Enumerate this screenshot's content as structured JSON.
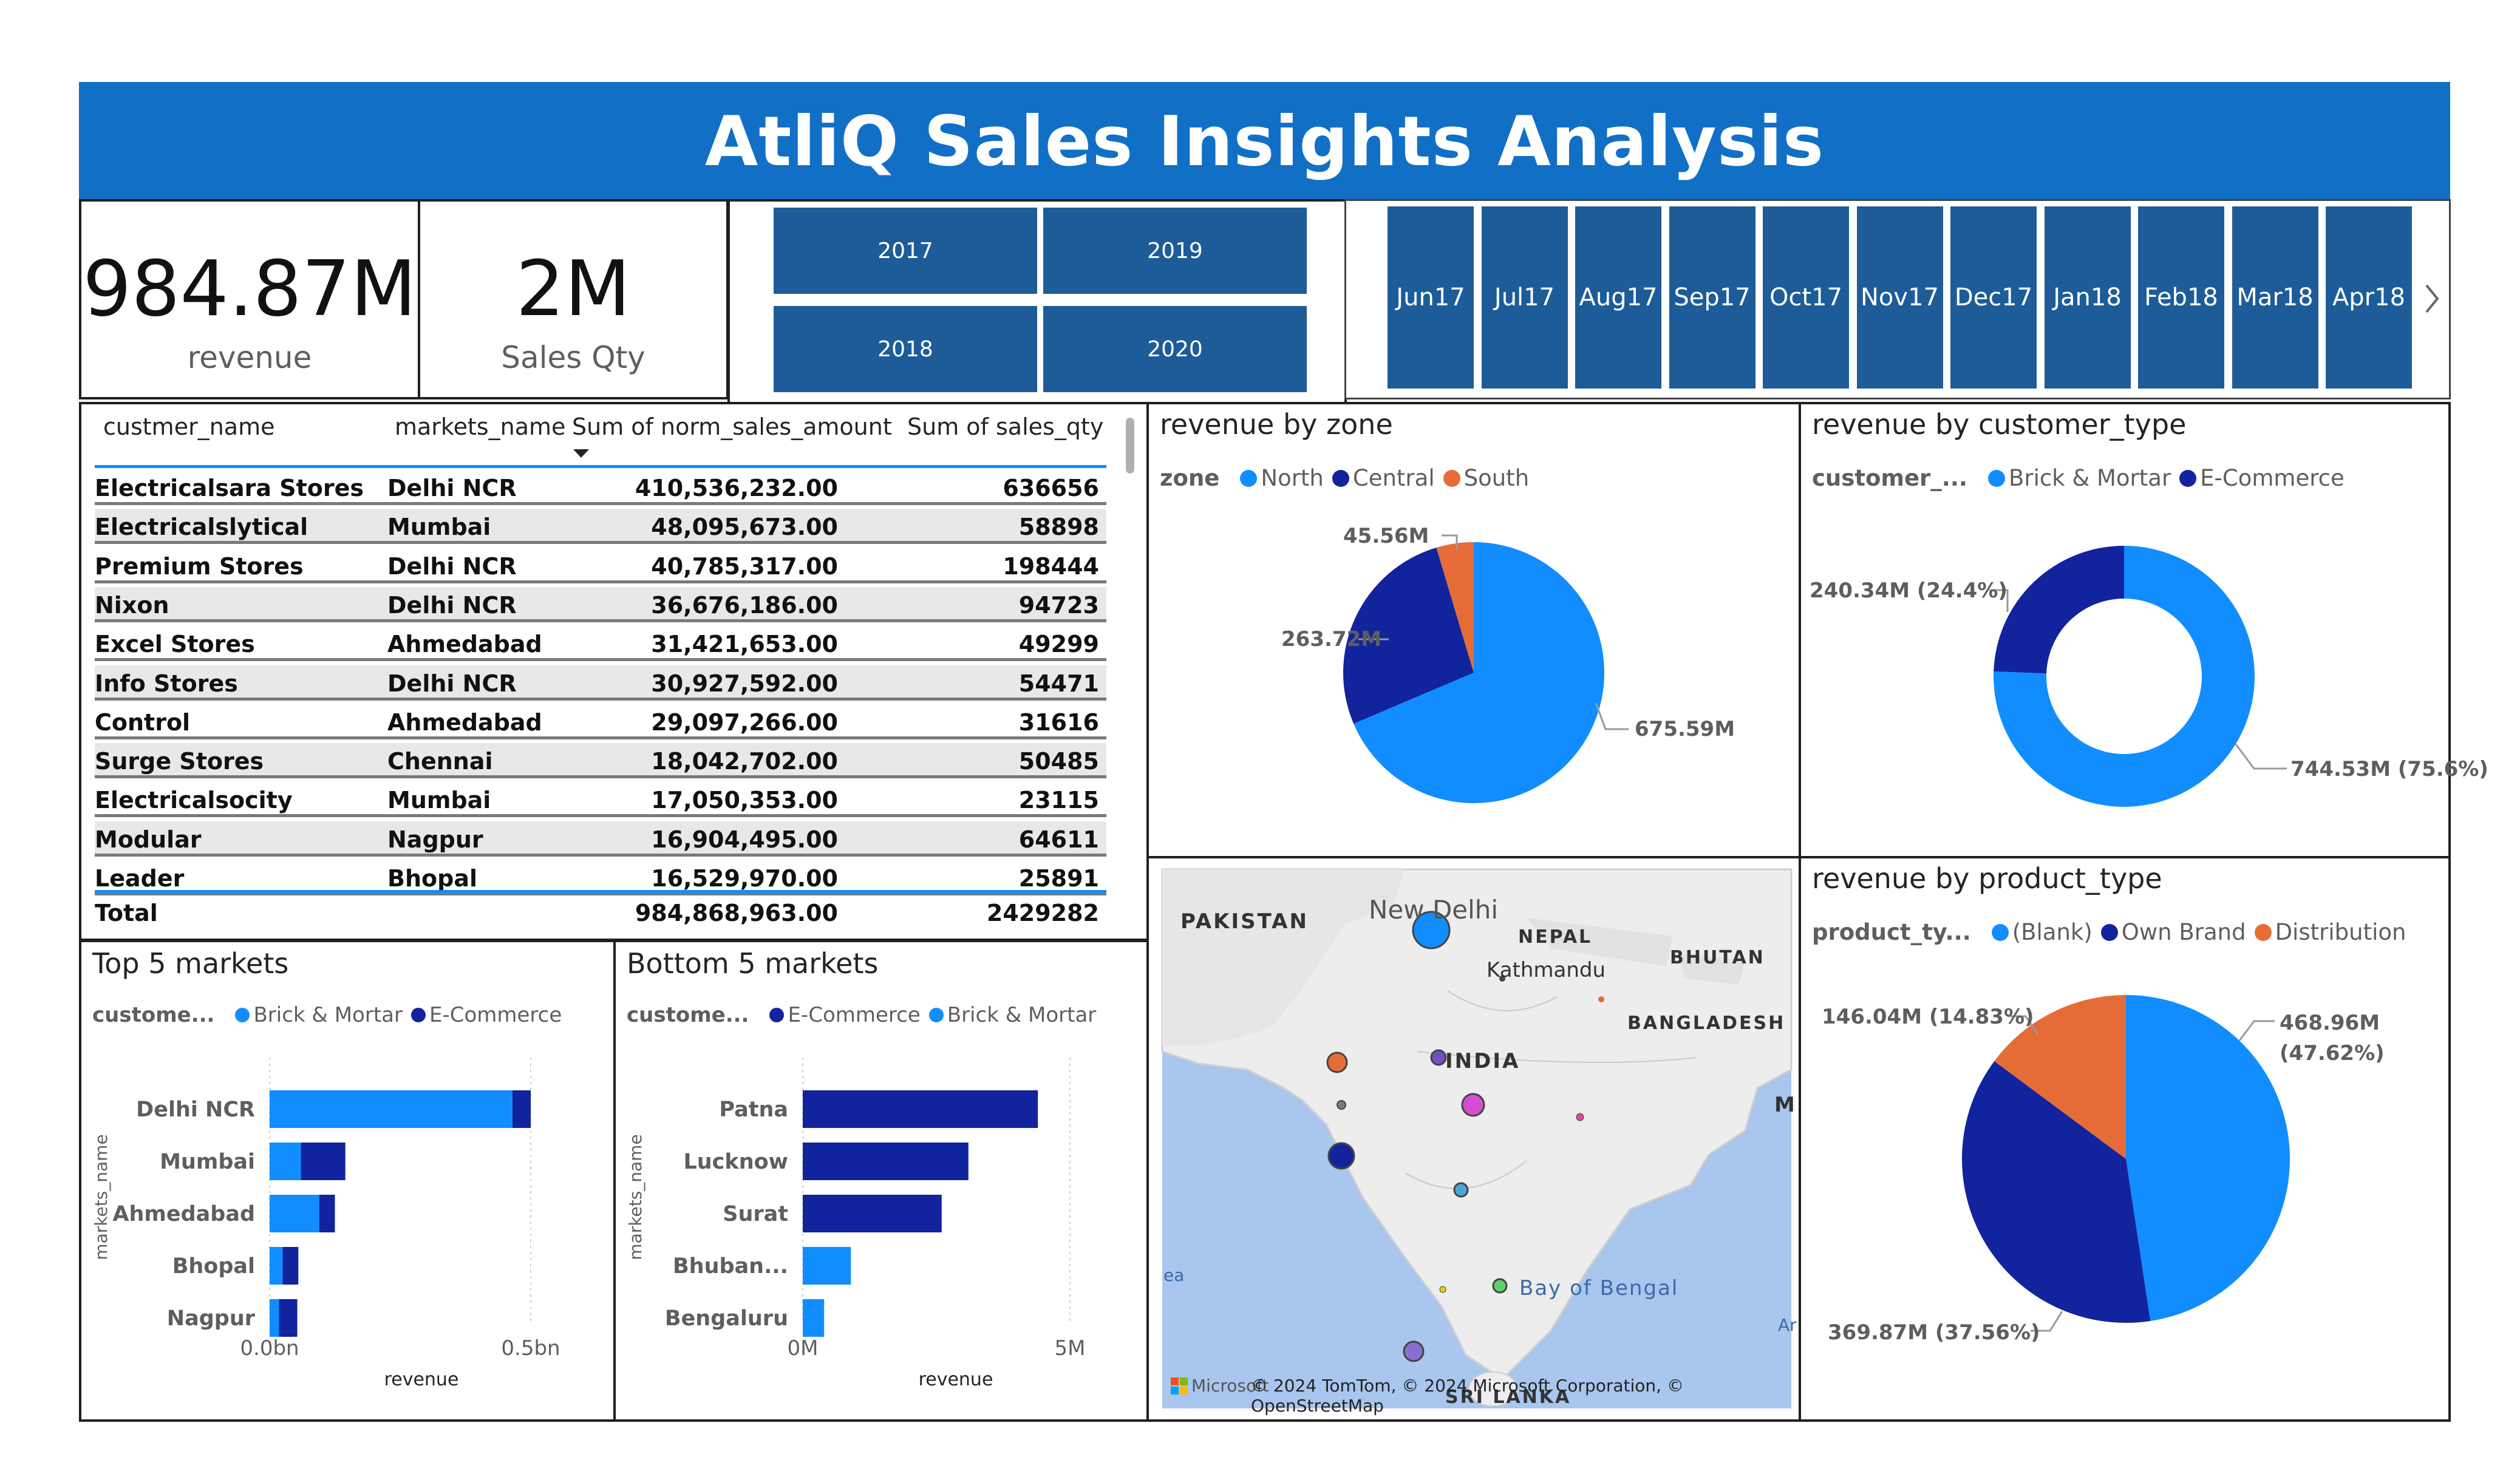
{
  "header": {
    "title": "AtliQ Sales Insights Analysis"
  },
  "kpis": {
    "revenue_value": "984.87M",
    "revenue_label": "revenue",
    "qty_value": "2M",
    "qty_label": "Sales Qty"
  },
  "years": [
    "2017",
    "2019",
    "2018",
    "2020"
  ],
  "months": [
    {
      "m": "Jun",
      "y": "17"
    },
    {
      "m": "Jul",
      "y": "17"
    },
    {
      "m": "Aug",
      "y": "17"
    },
    {
      "m": "Sep",
      "y": "17"
    },
    {
      "m": "Oct",
      "y": "17"
    },
    {
      "m": "Nov",
      "y": "17"
    },
    {
      "m": "Dec",
      "y": "17"
    },
    {
      "m": "Jan",
      "y": "18"
    },
    {
      "m": "Feb",
      "y": "18"
    },
    {
      "m": "Mar",
      "y": "18"
    },
    {
      "m": "Apr",
      "y": "18"
    }
  ],
  "month_next_icon": "chevron-right-icon",
  "table": {
    "headers": [
      "custmer_name",
      "markets_name",
      "Sum of norm_sales_amount",
      "Sum of sales_qty"
    ],
    "sort_icon": "sort-descending-icon",
    "rows": [
      [
        "Electricalsara Stores",
        "Delhi NCR",
        "410,536,232.00",
        "636656"
      ],
      [
        "Electricalslytical",
        "Mumbai",
        "48,095,673.00",
        "58898"
      ],
      [
        "Premium Stores",
        "Delhi NCR",
        "40,785,317.00",
        "198444"
      ],
      [
        "Nixon",
        "Delhi NCR",
        "36,676,186.00",
        "94723"
      ],
      [
        "Excel Stores",
        "Ahmedabad",
        "31,421,653.00",
        "49299"
      ],
      [
        "Info Stores",
        "Delhi NCR",
        "30,927,592.00",
        "54471"
      ],
      [
        "Control",
        "Ahmedabad",
        "29,097,266.00",
        "31616"
      ],
      [
        "Surge Stores",
        "Chennai",
        "18,042,702.00",
        "50485"
      ],
      [
        "Electricalsocity",
        "Mumbai",
        "17,050,353.00",
        "23115"
      ],
      [
        "Modular",
        "Nagpur",
        "16,904,495.00",
        "64611"
      ],
      [
        "Leader",
        "Bhopal",
        "16,529,970.00",
        "25891"
      ]
    ],
    "total": [
      "Total",
      "",
      "984,868,963.00",
      "2429282"
    ]
  },
  "colors": {
    "light_blue": "#118dff",
    "dark_blue": "#12239e",
    "orange": "#e66c37",
    "header_blue": "#1170c6",
    "slicer_blue": "#1d5c98"
  },
  "zone_chart": {
    "title": "revenue by zone",
    "legend_title": "zone",
    "legend": [
      "North",
      "Central",
      "South"
    ],
    "labels": [
      "675.59M",
      "263.72M",
      "45.56M"
    ]
  },
  "customer_type_chart": {
    "title": "revenue by customer_type",
    "legend_title": "customer_...",
    "legend": [
      "Brick & Mortar",
      "E-Commerce"
    ],
    "labels": [
      "744.53M (75.6%)",
      "240.34M (24.4%)"
    ]
  },
  "product_type_chart": {
    "title": "revenue by product_type",
    "legend_title": "product_ty...",
    "legend": [
      "(Blank)",
      "Own Brand",
      "Distribution"
    ],
    "labels": [
      "468.96M",
      "(47.62%)",
      "369.87M (37.56%)",
      "146.04M (14.83%)"
    ]
  },
  "top5": {
    "title": "Top 5 markets",
    "legend_title": "custome...",
    "legend": [
      "Brick & Mortar",
      "E-Commerce"
    ],
    "ylabel": "markets_name",
    "xlabel": "revenue",
    "ticks": [
      "0.0bn",
      "0.5bn"
    ]
  },
  "bottom5": {
    "title": "Bottom 5 markets",
    "legend_title": "custome...",
    "legend": [
      "E-Commerce",
      "Brick & Mortar"
    ],
    "ylabel": "markets_name",
    "xlabel": "revenue",
    "ticks": [
      "0M",
      "5M"
    ]
  },
  "map": {
    "labels": [
      "PAKISTAN",
      "New Delhi",
      "NEPAL",
      "Kathmandu",
      "BHUTAN",
      "BANGLADESH",
      "INDIA",
      "Bay of Bengal",
      "SRI LANKA",
      "M",
      "ea",
      "Ar"
    ],
    "attribution": "© 2024 TomTom, © 2024 Microsoft Corporation, © OpenStreetMap",
    "brand": "Microsoft"
  },
  "chart_data": [
    {
      "type": "pie",
      "title": "revenue by zone",
      "categories": [
        "North",
        "Central",
        "South"
      ],
      "values": [
        675.59,
        263.72,
        45.56
      ],
      "unit": "M"
    },
    {
      "type": "pie",
      "title": "revenue by customer_type",
      "donut": true,
      "categories": [
        "Brick & Mortar",
        "E-Commerce"
      ],
      "values": [
        744.53,
        240.34
      ],
      "unit": "M"
    },
    {
      "type": "pie",
      "title": "revenue by product_type",
      "categories": [
        "(Blank)",
        "Own Brand",
        "Distribution"
      ],
      "values": [
        468.96,
        369.87,
        146.04
      ],
      "unit": "M"
    },
    {
      "type": "bar",
      "orientation": "horizontal",
      "stacked": true,
      "title": "Top 5 markets",
      "categories": [
        "Delhi NCR",
        "Mumbai",
        "Ahmedabad",
        "Bhopal",
        "Nagpur"
      ],
      "series": [
        {
          "name": "Brick & Mortar",
          "values": [
            0.465,
            0.06,
            0.095,
            0.025,
            0.018
          ]
        },
        {
          "name": "E-Commerce",
          "values": [
            0.035,
            0.085,
            0.03,
            0.03,
            0.035
          ]
        }
      ],
      "xlabel": "revenue",
      "ylabel": "markets_name",
      "xlim": [
        0,
        0.5
      ],
      "unit": "bn"
    },
    {
      "type": "bar",
      "orientation": "horizontal",
      "stacked": true,
      "title": "Bottom 5 markets",
      "categories": [
        "Patna",
        "Lucknow",
        "Surat",
        "Bhuban...",
        "Bengaluru"
      ],
      "series": [
        {
          "name": "E-Commerce",
          "values": [
            4.4,
            3.1,
            2.6,
            0,
            0
          ]
        },
        {
          "name": "Brick & Mortar",
          "values": [
            0,
            0,
            0,
            0.9,
            0.4
          ]
        }
      ],
      "xlabel": "revenue",
      "ylabel": "markets_name",
      "xlim": [
        0,
        5
      ],
      "unit": "M"
    }
  ]
}
